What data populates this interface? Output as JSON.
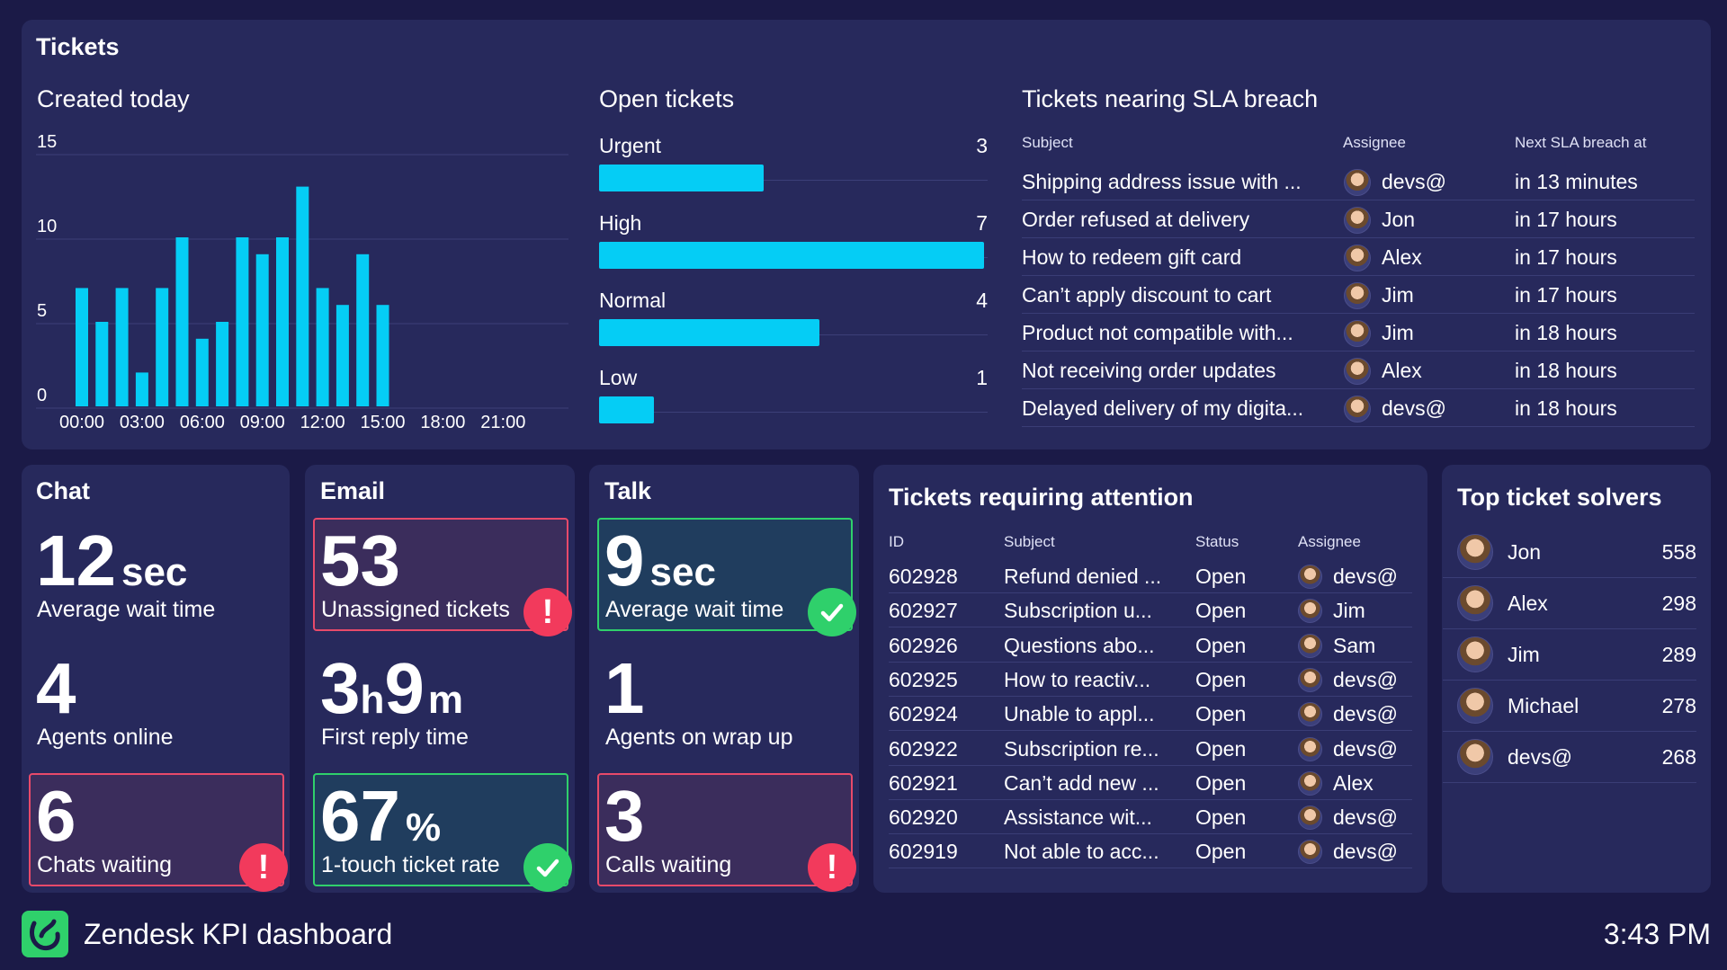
{
  "tickets_panel": {
    "title": "Tickets",
    "created_today": {
      "title": "Created today",
      "chart_data": {
        "type": "bar",
        "title": "Created today",
        "x_tick_labels": [
          "00:00",
          "03:00",
          "06:00",
          "09:00",
          "12:00",
          "15:00",
          "18:00",
          "21:00"
        ],
        "y_tick_labels": [
          "0",
          "5",
          "10",
          "15"
        ],
        "ylim": [
          0,
          15
        ],
        "xlim": [
          0,
          24
        ],
        "grid": true,
        "hours": [
          0,
          1,
          2,
          3,
          4,
          5,
          6,
          7,
          8,
          9,
          10,
          11,
          12,
          13,
          14,
          15
        ],
        "values": [
          7,
          5,
          7,
          2,
          7,
          10,
          4,
          5,
          10,
          9,
          10,
          13,
          7,
          6,
          9,
          6
        ],
        "color": "#05cdf5"
      }
    },
    "open_tickets": {
      "title": "Open tickets",
      "chart_data": {
        "type": "bar",
        "orientation": "horizontal",
        "categories": [
          "Urgent",
          "High",
          "Normal",
          "Low"
        ],
        "values": [
          3,
          7,
          4,
          1
        ],
        "max": 7,
        "color": "#05cdf5"
      }
    },
    "sla": {
      "title": "Tickets nearing SLA breach",
      "headers": {
        "subject": "Subject",
        "assignee": "Assignee",
        "next": "Next SLA breach at"
      },
      "rows": [
        {
          "subject": "Shipping address issue with ...",
          "assignee": "devs@",
          "next": "in 13 minutes"
        },
        {
          "subject": "Order refused at delivery",
          "assignee": "Jon",
          "next": "in 17 hours"
        },
        {
          "subject": "How to redeem gift card",
          "assignee": "Alex",
          "next": "in 17 hours"
        },
        {
          "subject": "Can’t apply discount to cart",
          "assignee": "Jim",
          "next": "in 17 hours"
        },
        {
          "subject": "Product not compatible with...",
          "assignee": "Jim",
          "next": "in 18 hours"
        },
        {
          "subject": "Not receiving order updates",
          "assignee": "Alex",
          "next": "in 18 hours"
        },
        {
          "subject": "Delayed delivery of my digita...",
          "assignee": "devs@",
          "next": "in 18 hours"
        }
      ]
    }
  },
  "chat": {
    "title": "Chat",
    "wait_value": "12",
    "wait_unit": "sec",
    "wait_label": "Average wait time",
    "agents_value": "4",
    "agents_label": "Agents online",
    "waiting_value": "6",
    "waiting_label": "Chats waiting",
    "waiting_status": "alert"
  },
  "email": {
    "title": "Email",
    "unassigned_value": "53",
    "unassigned_label": "Unassigned tickets",
    "unassigned_status": "alert",
    "reply_h": "3",
    "reply_h_unit": "h",
    "reply_m": "9",
    "reply_m_unit": "m",
    "reply_label": "First reply time",
    "touch_value": "67",
    "touch_unit": "%",
    "touch_label": "1-touch ticket rate",
    "touch_status": "ok"
  },
  "talk": {
    "title": "Talk",
    "wait_value": "9",
    "wait_unit": "sec",
    "wait_label": "Average wait time",
    "wait_status": "ok",
    "wrap_value": "1",
    "wrap_label": "Agents on wrap up",
    "calls_value": "3",
    "calls_label": "Calls waiting",
    "calls_status": "alert"
  },
  "badges": {
    "alert_glyph": "!",
    "alert_color": "#f23a5c",
    "ok_color": "#2fd06b"
  },
  "attention": {
    "title": "Tickets requiring attention",
    "headers": {
      "id": "ID",
      "subject": "Subject",
      "status": "Status",
      "assignee": "Assignee"
    },
    "rows": [
      {
        "id": "602928",
        "subject": "Refund denied ...",
        "status": "Open",
        "assignee": "devs@"
      },
      {
        "id": "602927",
        "subject": "Subscription u...",
        "status": "Open",
        "assignee": "Jim"
      },
      {
        "id": "602926",
        "subject": "Questions abo...",
        "status": "Open",
        "assignee": "Sam"
      },
      {
        "id": "602925",
        "subject": "How to reactiv...",
        "status": "Open",
        "assignee": "devs@"
      },
      {
        "id": "602924",
        "subject": "Unable to appl...",
        "status": "Open",
        "assignee": "devs@"
      },
      {
        "id": "602922",
        "subject": "Subscription re...",
        "status": "Open",
        "assignee": "devs@"
      },
      {
        "id": "602921",
        "subject": "Can’t add new ...",
        "status": "Open",
        "assignee": "Alex"
      },
      {
        "id": "602920",
        "subject": "Assistance wit...",
        "status": "Open",
        "assignee": "devs@"
      },
      {
        "id": "602919",
        "subject": "Not able to acc...",
        "status": "Open",
        "assignee": "devs@"
      }
    ]
  },
  "solvers": {
    "title": "Top ticket solvers",
    "rows": [
      {
        "name": "Jon",
        "count": "558"
      },
      {
        "name": "Alex",
        "count": "298"
      },
      {
        "name": "Jim",
        "count": "289"
      },
      {
        "name": "Michael",
        "count": "278"
      },
      {
        "name": "devs@",
        "count": "268"
      }
    ]
  },
  "footer": {
    "app_name": "Zendesk KPI dashboard",
    "time": "3:43 PM",
    "logo_icon": "zendesk-logo-icon",
    "logo_color": "#2fd06b"
  }
}
